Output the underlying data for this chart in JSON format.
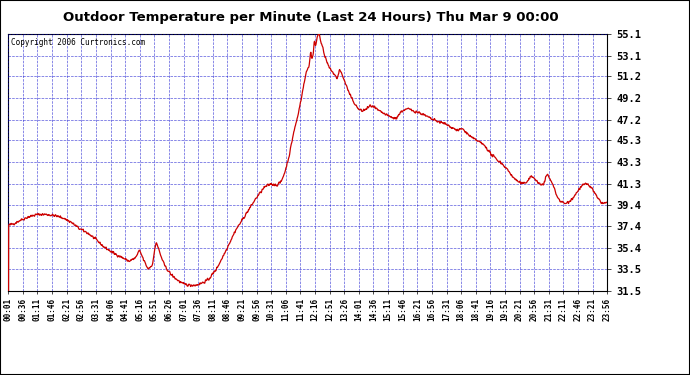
{
  "title": "Outdoor Temperature per Minute (Last 24 Hours) Thu Mar 9 00:00",
  "copyright": "Copyright 2006 Curtronics.com",
  "yticks": [
    31.5,
    33.5,
    35.4,
    37.4,
    39.4,
    41.3,
    43.3,
    45.3,
    47.2,
    49.2,
    51.2,
    53.1,
    55.1
  ],
  "ymin": 31.5,
  "ymax": 55.1,
  "line_color": "#cc0000",
  "bg_color": "#ffffff",
  "grid_color": "#0000cc",
  "xtick_labels": [
    "00:01",
    "00:36",
    "01:11",
    "01:46",
    "02:21",
    "02:56",
    "03:31",
    "04:06",
    "04:41",
    "05:16",
    "05:51",
    "06:26",
    "07:01",
    "07:36",
    "08:11",
    "08:46",
    "09:21",
    "09:56",
    "10:31",
    "11:06",
    "11:41",
    "12:16",
    "12:51",
    "13:26",
    "14:01",
    "14:36",
    "15:11",
    "15:46",
    "16:21",
    "16:56",
    "17:31",
    "18:06",
    "18:41",
    "19:16",
    "19:51",
    "20:21",
    "20:56",
    "21:31",
    "22:11",
    "22:46",
    "23:21",
    "23:56"
  ],
  "keypoints": [
    [
      0,
      37.5
    ],
    [
      15,
      37.7
    ],
    [
      30,
      38.0
    ],
    [
      50,
      38.3
    ],
    [
      70,
      38.5
    ],
    [
      90,
      38.5
    ],
    [
      110,
      38.4
    ],
    [
      130,
      38.2
    ],
    [
      150,
      37.8
    ],
    [
      170,
      37.2
    ],
    [
      190,
      36.8
    ],
    [
      210,
      36.2
    ],
    [
      230,
      35.5
    ],
    [
      250,
      35.0
    ],
    [
      270,
      34.6
    ],
    [
      290,
      34.2
    ],
    [
      305,
      34.5
    ],
    [
      315,
      35.2
    ],
    [
      325,
      34.3
    ],
    [
      335,
      33.5
    ],
    [
      345,
      33.8
    ],
    [
      355,
      36.0
    ],
    [
      365,
      34.8
    ],
    [
      375,
      33.8
    ],
    [
      390,
      33.0
    ],
    [
      405,
      32.5
    ],
    [
      420,
      32.1
    ],
    [
      435,
      32.0
    ],
    [
      450,
      32.0
    ],
    [
      465,
      32.2
    ],
    [
      480,
      32.5
    ],
    [
      500,
      33.5
    ],
    [
      520,
      35.0
    ],
    [
      545,
      37.0
    ],
    [
      570,
      38.5
    ],
    [
      595,
      40.0
    ],
    [
      615,
      41.0
    ],
    [
      630,
      41.3
    ],
    [
      645,
      41.2
    ],
    [
      655,
      41.5
    ],
    [
      665,
      42.5
    ],
    [
      675,
      44.0
    ],
    [
      685,
      46.0
    ],
    [
      695,
      47.5
    ],
    [
      705,
      49.5
    ],
    [
      715,
      51.5
    ],
    [
      720,
      52.0
    ],
    [
      723,
      52.3
    ],
    [
      726,
      53.5
    ],
    [
      729,
      52.8
    ],
    [
      732,
      53.2
    ],
    [
      735,
      54.5
    ],
    [
      738,
      53.8
    ],
    [
      741,
      54.8
    ],
    [
      744,
      55.0
    ],
    [
      747,
      55.1
    ],
    [
      750,
      54.5
    ],
    [
      755,
      53.8
    ],
    [
      760,
      53.0
    ],
    [
      765,
      52.5
    ],
    [
      770,
      52.0
    ],
    [
      775,
      51.8
    ],
    [
      780,
      51.5
    ],
    [
      785,
      51.2
    ],
    [
      790,
      51.0
    ],
    [
      795,
      51.8
    ],
    [
      800,
      51.5
    ],
    [
      805,
      51.0
    ],
    [
      810,
      50.5
    ],
    [
      820,
      49.5
    ],
    [
      830,
      48.8
    ],
    [
      840,
      48.2
    ],
    [
      850,
      48.0
    ],
    [
      860,
      48.2
    ],
    [
      870,
      48.5
    ],
    [
      880,
      48.3
    ],
    [
      890,
      48.0
    ],
    [
      900,
      47.8
    ],
    [
      915,
      47.5
    ],
    [
      930,
      47.3
    ],
    [
      945,
      48.0
    ],
    [
      960,
      48.2
    ],
    [
      975,
      48.0
    ],
    [
      990,
      47.8
    ],
    [
      1005,
      47.5
    ],
    [
      1020,
      47.2
    ],
    [
      1035,
      47.0
    ],
    [
      1050,
      46.8
    ],
    [
      1065,
      46.5
    ],
    [
      1080,
      46.2
    ],
    [
      1090,
      46.4
    ],
    [
      1100,
      46.0
    ],
    [
      1115,
      45.5
    ],
    [
      1130,
      45.2
    ],
    [
      1145,
      44.8
    ],
    [
      1160,
      44.0
    ],
    [
      1175,
      43.5
    ],
    [
      1185,
      43.2
    ],
    [
      1195,
      42.8
    ],
    [
      1205,
      42.3
    ],
    [
      1215,
      41.8
    ],
    [
      1225,
      41.5
    ],
    [
      1235,
      41.3
    ],
    [
      1245,
      41.5
    ],
    [
      1255,
      42.0
    ],
    [
      1265,
      41.8
    ],
    [
      1270,
      41.5
    ],
    [
      1275,
      41.3
    ],
    [
      1280,
      41.2
    ],
    [
      1285,
      41.3
    ],
    [
      1290,
      41.8
    ],
    [
      1295,
      42.2
    ],
    [
      1300,
      41.8
    ],
    [
      1305,
      41.5
    ],
    [
      1310,
      41.0
    ],
    [
      1315,
      40.5
    ],
    [
      1320,
      40.0
    ],
    [
      1330,
      39.6
    ],
    [
      1340,
      39.5
    ],
    [
      1350,
      39.8
    ],
    [
      1360,
      40.2
    ],
    [
      1370,
      40.8
    ],
    [
      1380,
      41.2
    ],
    [
      1390,
      41.3
    ],
    [
      1400,
      41.0
    ],
    [
      1408,
      40.5
    ],
    [
      1415,
      40.0
    ],
    [
      1420,
      39.8
    ],
    [
      1425,
      39.6
    ],
    [
      1430,
      39.5
    ],
    [
      1435,
      39.6
    ],
    [
      1439,
      39.5
    ]
  ]
}
